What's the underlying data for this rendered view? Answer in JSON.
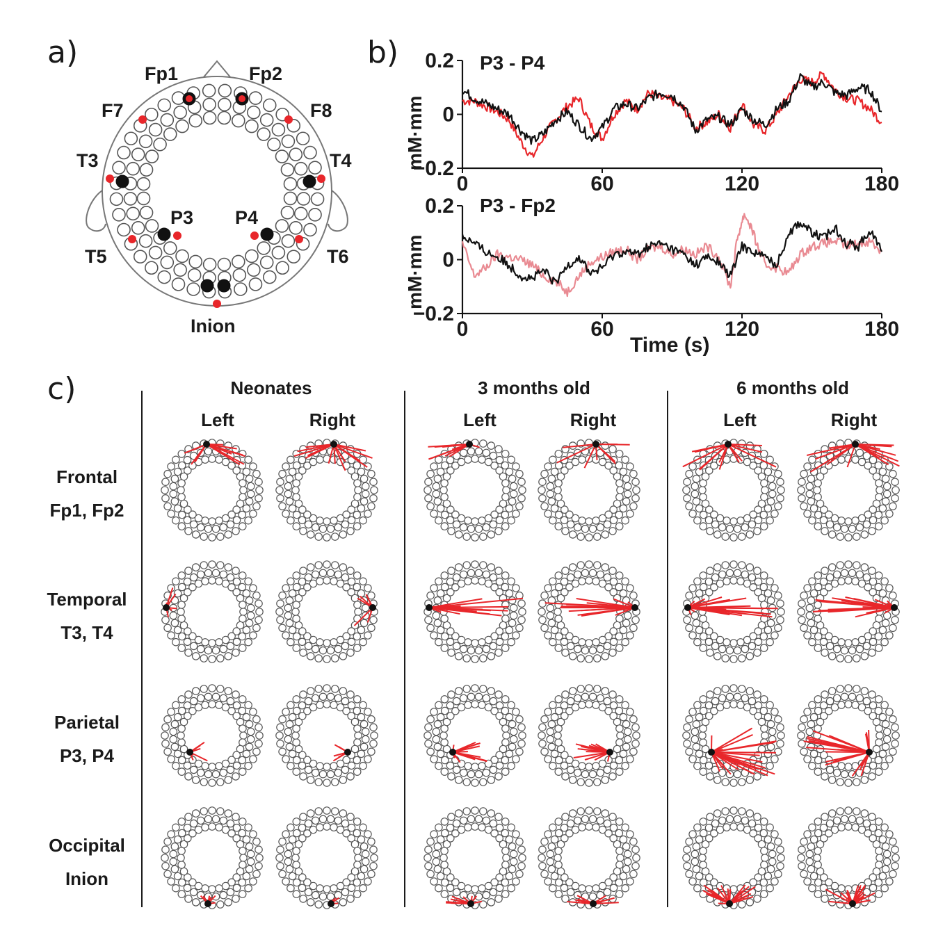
{
  "panel_labels": {
    "a": "a)",
    "b": "b)",
    "c": "c)"
  },
  "head_labels": {
    "fp1": "Fp1",
    "fp2": "Fp2",
    "f7": "F7",
    "f8": "F8",
    "t3": "T3",
    "t4": "T4",
    "p3": "P3",
    "p4": "P4",
    "t5": "T5",
    "t6": "T6",
    "inion": "Inion"
  },
  "chart_data": [
    {
      "type": "line",
      "title": "P3 - P4",
      "ylabel": "mM·mm",
      "xlabel": "",
      "xlim": [
        0,
        180
      ],
      "ylim": [
        -0.2,
        0.2
      ],
      "xticks": [
        0,
        60,
        120,
        180
      ],
      "yticks": [
        "0.2",
        "0",
        "−0.2"
      ],
      "series": [
        {
          "color": "#111111",
          "x": [
            0,
            5,
            10,
            15,
            20,
            25,
            30,
            35,
            40,
            45,
            50,
            55,
            60,
            65,
            70,
            75,
            80,
            85,
            90,
            95,
            100,
            105,
            110,
            115,
            120,
            125,
            130,
            135,
            140,
            145,
            150,
            155,
            160,
            165,
            170,
            175,
            180
          ],
          "values": [
            0.09,
            0.06,
            0.04,
            0.02,
            0.0,
            -0.06,
            -0.1,
            -0.07,
            -0.02,
            0.01,
            -0.04,
            -0.09,
            -0.05,
            0.02,
            0.04,
            0.02,
            0.06,
            0.08,
            0.07,
            0.03,
            -0.06,
            -0.02,
            -0.01,
            -0.04,
            0.02,
            -0.02,
            -0.04,
            0.02,
            0.05,
            0.14,
            0.1,
            0.12,
            0.08,
            0.07,
            0.1,
            0.09,
            0.01
          ]
        },
        {
          "color": "#e8262a",
          "x": [
            0,
            5,
            10,
            15,
            20,
            25,
            30,
            35,
            40,
            45,
            50,
            55,
            60,
            65,
            70,
            75,
            80,
            85,
            90,
            95,
            100,
            105,
            110,
            115,
            120,
            125,
            130,
            135,
            140,
            145,
            150,
            155,
            160,
            165,
            170,
            175,
            180
          ],
          "values": [
            0.05,
            0.05,
            0.03,
            0.01,
            -0.02,
            -0.1,
            -0.16,
            -0.08,
            -0.02,
            0.03,
            0.06,
            -0.04,
            -0.09,
            0.0,
            0.05,
            0.02,
            0.08,
            0.06,
            0.05,
            0.02,
            -0.05,
            -0.03,
            0.0,
            -0.05,
            0.04,
            -0.04,
            -0.06,
            0.0,
            0.07,
            0.13,
            0.12,
            0.15,
            0.09,
            0.06,
            0.05,
            0.02,
            -0.03
          ]
        }
      ]
    },
    {
      "type": "line",
      "title": "P3 - Fp2",
      "ylabel": "mM·mm",
      "xlabel": "Time (s)",
      "xlim": [
        0,
        180
      ],
      "ylim": [
        -0.2,
        0.2
      ],
      "xticks": [
        0,
        60,
        120,
        180
      ],
      "yticks": [
        "0.2",
        "0",
        "−0.2"
      ],
      "series": [
        {
          "color": "#111111",
          "x": [
            0,
            5,
            10,
            15,
            20,
            25,
            30,
            35,
            40,
            45,
            50,
            55,
            60,
            65,
            70,
            75,
            80,
            85,
            90,
            95,
            100,
            105,
            110,
            115,
            120,
            125,
            130,
            135,
            140,
            145,
            150,
            155,
            160,
            165,
            170,
            175,
            180
          ],
          "values": [
            0.09,
            0.06,
            0.03,
            0.01,
            -0.02,
            -0.06,
            -0.07,
            -0.04,
            -0.09,
            -0.02,
            0.01,
            -0.05,
            -0.03,
            0.02,
            0.03,
            0.02,
            0.05,
            0.06,
            0.04,
            0.02,
            -0.02,
            0.01,
            -0.01,
            -0.06,
            0.05,
            0.03,
            0.01,
            -0.02,
            0.1,
            0.14,
            0.1,
            0.08,
            0.12,
            0.06,
            0.05,
            0.11,
            0.03
          ]
        },
        {
          "color": "#e98a92",
          "x": [
            0,
            5,
            10,
            15,
            20,
            25,
            30,
            35,
            40,
            45,
            50,
            55,
            60,
            65,
            70,
            75,
            80,
            85,
            90,
            95,
            100,
            105,
            110,
            115,
            118,
            121,
            124,
            127,
            130,
            135,
            140,
            145,
            150,
            155,
            160,
            165,
            170,
            175,
            180
          ],
          "values": [
            0.06,
            -0.06,
            -0.03,
            0.02,
            0.01,
            0.0,
            -0.02,
            -0.06,
            -0.08,
            -0.12,
            -0.06,
            -0.01,
            0.01,
            0.03,
            0.04,
            0.0,
            0.04,
            0.05,
            0.02,
            0.04,
            0.02,
            0.05,
            0.01,
            -0.1,
            0.08,
            0.17,
            0.12,
            0.04,
            -0.02,
            -0.03,
            -0.05,
            0.02,
            0.05,
            0.06,
            0.07,
            0.05,
            0.06,
            0.07,
            0.03
          ]
        }
      ]
    }
  ],
  "panel_c": {
    "columns": [
      {
        "title": "Neonates",
        "left": "Left",
        "right": "Right"
      },
      {
        "title": "3 months old",
        "left": "Left",
        "right": "Right"
      },
      {
        "title": "6 months old",
        "left": "Left",
        "right": "Right"
      }
    ],
    "rows": [
      {
        "region": "Frontal",
        "channels": "Fp1, Fp2"
      },
      {
        "region": "Temporal",
        "channels": "T3, T4"
      },
      {
        "region": "Parietal",
        "channels": "P3, P4"
      },
      {
        "region": "Occipital",
        "channels": "Inion"
      }
    ]
  },
  "colors": {
    "accent_red": "#e8262a",
    "light_red": "#e98a92",
    "text": "#1a1a1a",
    "ring": "#555555"
  }
}
